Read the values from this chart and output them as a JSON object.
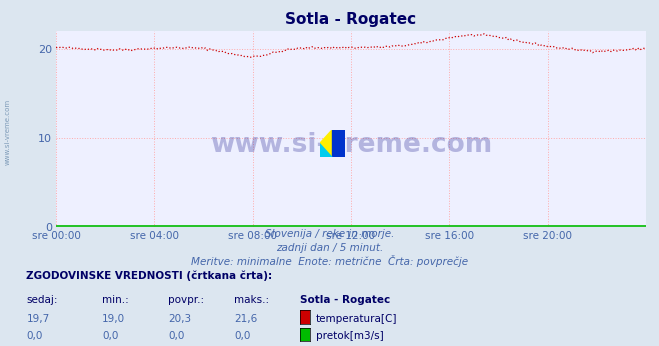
{
  "title": "Sotla - Rogatec",
  "bg_color": "#dce6f0",
  "plot_bg_color": "#eef0ff",
  "grid_color": "#ffaaaa",
  "grid_style": "dotted",
  "x_label_color": "#4466aa",
  "y_label_color": "#4466aa",
  "title_color": "#000066",
  "watermark_text": "www.si-vreme.com",
  "watermark_color": "#1a1a8c",
  "sidebar_text": "www.si-vreme.com",
  "sidebar_color": "#6688aa",
  "ylim": [
    0,
    22
  ],
  "yticks": [
    0,
    10,
    20
  ],
  "xlim": [
    0,
    288
  ],
  "xtick_positions": [
    0,
    48,
    96,
    144,
    192,
    240
  ],
  "xtick_labels": [
    "sre 00:00",
    "sre 04:00",
    "sre 08:00",
    "sre 12:00",
    "sre 16:00",
    "sre 20:00"
  ],
  "temp_color": "#cc0000",
  "flow_color": "#00bb00",
  "subtitle1": "Slovenija / reke in morje.",
  "subtitle2": "zadnji dan / 5 minut.",
  "subtitle3": "Meritve: minimalne  Enote: metrične  Črta: povprečje",
  "table_header": "ZGODOVINSKE VREDNOSTI (črtkana črta):",
  "col_headers": [
    "sedaj:",
    "min.:",
    "povpr.:",
    "maks.:",
    "Sotla - Rogatec"
  ],
  "row1": [
    "19,7",
    "19,0",
    "20,3",
    "21,6",
    "temperatura[C]"
  ],
  "row2": [
    "0,0",
    "0,0",
    "0,0",
    "0,0",
    "pretok[m3/s]"
  ],
  "temp_avg": 20.3,
  "temp_min": 19.0,
  "temp_max": 21.6,
  "temp_current": 19.7,
  "temp_icon_color": "#cc0000",
  "flow_icon_color": "#00bb00"
}
